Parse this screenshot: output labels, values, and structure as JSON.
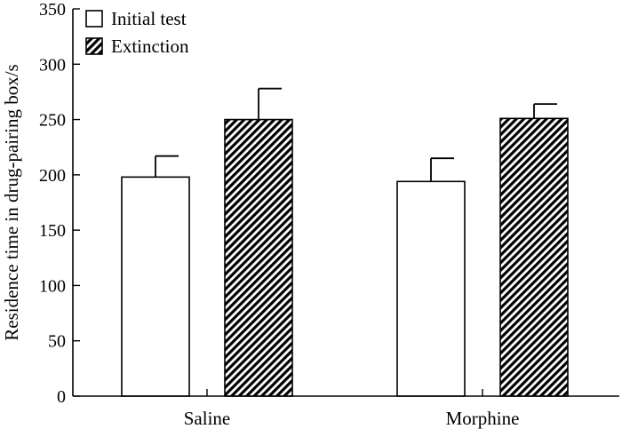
{
  "chart_data": {
    "type": "bar",
    "categories": [
      "Saline",
      "Morphine"
    ],
    "series": [
      {
        "name": "Initial test",
        "values": [
          198,
          194
        ],
        "errors": [
          19,
          21
        ],
        "fill": "white"
      },
      {
        "name": "Extinction",
        "values": [
          250,
          251
        ],
        "errors": [
          28,
          13
        ],
        "fill": "hatched"
      }
    ],
    "title": "",
    "xlabel": "",
    "ylabel": "Residence time in drug-pairing box/s",
    "ylim": [
      0,
      350
    ],
    "yticks": [
      0,
      50,
      100,
      150,
      200,
      250,
      300,
      350
    ],
    "grid": false,
    "legend_position": "top-left",
    "colors": {
      "axis": "#000000",
      "bar_outline": "#000000",
      "bar_fill": "#ffffff",
      "hatch": "#000000"
    }
  }
}
